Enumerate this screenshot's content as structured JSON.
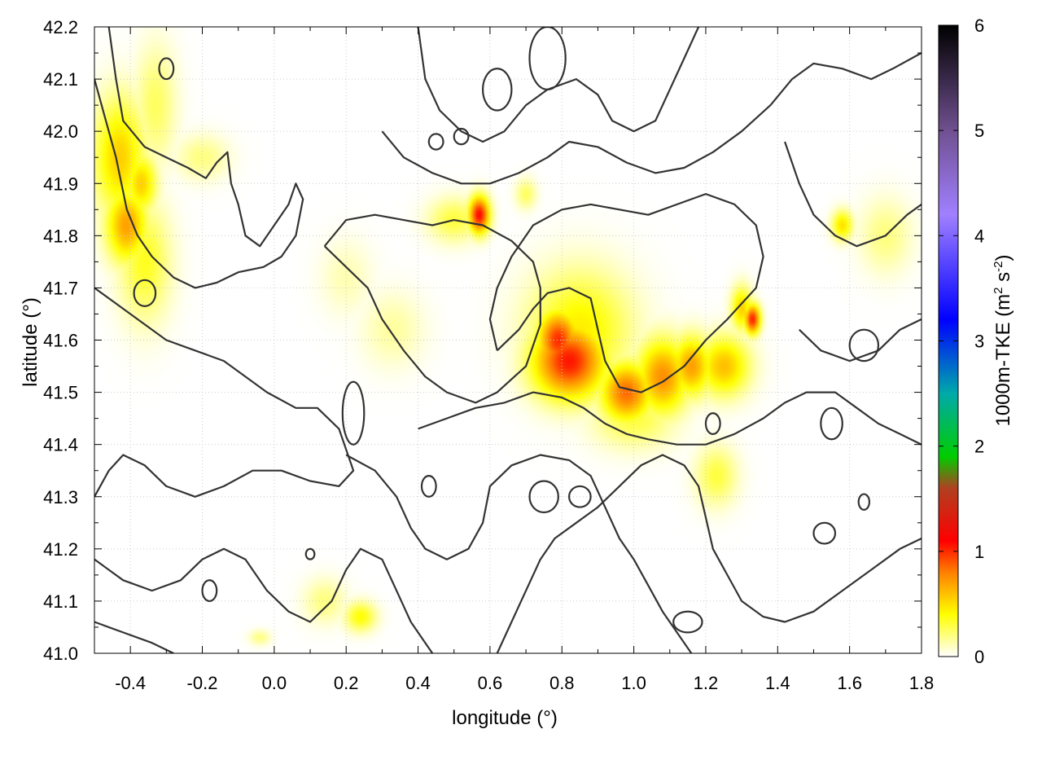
{
  "chart_data": {
    "type": "heatmap",
    "xlabel": "longitude (°)",
    "ylabel": "latitude (°)",
    "xlim": [
      -0.5,
      1.8
    ],
    "ylim": [
      41.0,
      42.2
    ],
    "x_ticks": [
      "-0.4",
      "-0.2",
      "0.0",
      "0.2",
      "0.4",
      "0.6",
      "0.8",
      "1.0",
      "1.2",
      "1.4",
      "1.6",
      "1.8"
    ],
    "y_ticks": [
      "41.0",
      "41.1",
      "41.2",
      "41.3",
      "41.4",
      "41.5",
      "41.6",
      "41.7",
      "41.8",
      "41.9",
      "42.0",
      "42.1",
      "42.2"
    ],
    "grid": true,
    "colorbar": {
      "label_main": "1000m-TKE (m",
      "label_sup1": "2",
      "label_mid": " s",
      "label_sup2": "-2",
      "label_end": ")",
      "range": [
        0,
        6
      ],
      "ticks": [
        "0",
        "1",
        "2",
        "3",
        "4",
        "5",
        "6"
      ],
      "colormap_stops": [
        {
          "value": 0.0,
          "color": "#ffffff"
        },
        {
          "value": 0.4,
          "color": "#ffff00"
        },
        {
          "value": 0.8,
          "color": "#ff8000"
        },
        {
          "value": 1.1,
          "color": "#ff0000"
        },
        {
          "value": 1.6,
          "color": "#b04020"
        },
        {
          "value": 1.9,
          "color": "#00cc00"
        },
        {
          "value": 2.5,
          "color": "#00aaaa"
        },
        {
          "value": 3.2,
          "color": "#0000ff"
        },
        {
          "value": 4.2,
          "color": "#a080ff"
        },
        {
          "value": 5.0,
          "color": "#705090"
        },
        {
          "value": 6.0,
          "color": "#000000"
        }
      ]
    },
    "hotspots": [
      {
        "lon": -0.43,
        "lat": 41.95,
        "sx": 0.05,
        "sy": 0.08,
        "value": 0.55
      },
      {
        "lon": -0.41,
        "lat": 41.82,
        "sx": 0.04,
        "sy": 0.05,
        "value": 0.7
      },
      {
        "lon": -0.37,
        "lat": 41.9,
        "sx": 0.03,
        "sy": 0.04,
        "value": 0.55
      },
      {
        "lon": -0.36,
        "lat": 41.75,
        "sx": 0.05,
        "sy": 0.08,
        "value": 0.35
      },
      {
        "lon": -0.33,
        "lat": 42.05,
        "sx": 0.04,
        "sy": 0.08,
        "value": 0.25
      },
      {
        "lon": -0.2,
        "lat": 41.95,
        "sx": 0.05,
        "sy": 0.03,
        "value": 0.2
      },
      {
        "lon": 0.57,
        "lat": 41.84,
        "sx": 0.02,
        "sy": 0.025,
        "value": 1.1
      },
      {
        "lon": 0.5,
        "lat": 41.83,
        "sx": 0.05,
        "sy": 0.03,
        "value": 0.3
      },
      {
        "lon": 0.82,
        "lat": 41.56,
        "sx": 0.07,
        "sy": 0.05,
        "value": 1.05
      },
      {
        "lon": 0.79,
        "lat": 41.6,
        "sx": 0.04,
        "sy": 0.04,
        "value": 1.0
      },
      {
        "lon": 0.85,
        "lat": 41.62,
        "sx": 0.1,
        "sy": 0.08,
        "value": 0.45
      },
      {
        "lon": 0.98,
        "lat": 41.5,
        "sx": 0.05,
        "sy": 0.04,
        "value": 0.85
      },
      {
        "lon": 1.08,
        "lat": 41.53,
        "sx": 0.05,
        "sy": 0.05,
        "value": 0.75
      },
      {
        "lon": 1.16,
        "lat": 41.55,
        "sx": 0.04,
        "sy": 0.04,
        "value": 0.7
      },
      {
        "lon": 1.25,
        "lat": 41.55,
        "sx": 0.05,
        "sy": 0.04,
        "value": 0.6
      },
      {
        "lon": 1.33,
        "lat": 41.64,
        "sx": 0.015,
        "sy": 0.02,
        "value": 1.05
      },
      {
        "lon": 1.3,
        "lat": 41.66,
        "sx": 0.02,
        "sy": 0.03,
        "value": 0.55
      },
      {
        "lon": 1.0,
        "lat": 41.45,
        "sx": 0.08,
        "sy": 0.04,
        "value": 0.3
      },
      {
        "lon": 1.23,
        "lat": 41.34,
        "sx": 0.04,
        "sy": 0.04,
        "value": 0.3
      },
      {
        "lon": 1.58,
        "lat": 41.82,
        "sx": 0.02,
        "sy": 0.02,
        "value": 0.5
      },
      {
        "lon": 1.7,
        "lat": 41.8,
        "sx": 0.05,
        "sy": 0.05,
        "value": 0.2
      },
      {
        "lon": 0.24,
        "lat": 41.07,
        "sx": 0.03,
        "sy": 0.02,
        "value": 0.4
      },
      {
        "lon": 0.14,
        "lat": 41.1,
        "sx": 0.04,
        "sy": 0.03,
        "value": 0.2
      },
      {
        "lon": -0.04,
        "lat": 41.03,
        "sx": 0.02,
        "sy": 0.01,
        "value": 0.2
      },
      {
        "lon": 0.33,
        "lat": 41.62,
        "sx": 0.06,
        "sy": 0.05,
        "value": 0.15
      },
      {
        "lon": 0.2,
        "lat": 41.72,
        "sx": 0.05,
        "sy": 0.05,
        "value": 0.12
      },
      {
        "lon": 0.7,
        "lat": 41.88,
        "sx": 0.02,
        "sy": 0.02,
        "value": 0.25
      }
    ],
    "contours": [
      [
        [
          -0.46,
          42.2
        ],
        [
          -0.44,
          42.1
        ],
        [
          -0.42,
          42.02
        ],
        [
          -0.36,
          41.97
        ],
        [
          -0.3,
          41.95
        ],
        [
          -0.24,
          41.93
        ],
        [
          -0.19,
          41.91
        ],
        [
          -0.16,
          41.94
        ],
        [
          -0.13,
          41.96
        ],
        [
          -0.12,
          41.9
        ],
        [
          -0.1,
          41.86
        ],
        [
          -0.08,
          41.8
        ],
        [
          -0.04,
          41.78
        ],
        [
          0.0,
          41.82
        ],
        [
          0.04,
          41.86
        ],
        [
          0.06,
          41.9
        ],
        [
          0.08,
          41.87
        ],
        [
          0.06,
          41.8
        ],
        [
          0.02,
          41.76
        ],
        [
          -0.03,
          41.74
        ],
        [
          -0.1,
          41.73
        ],
        [
          -0.16,
          41.71
        ],
        [
          -0.22,
          41.7
        ],
        [
          -0.28,
          41.72
        ],
        [
          -0.34,
          41.76
        ],
        [
          -0.38,
          41.8
        ],
        [
          -0.41,
          41.85
        ],
        [
          -0.44,
          41.95
        ],
        [
          -0.48,
          42.05
        ],
        [
          -0.5,
          42.1
        ]
      ],
      [
        [
          -0.5,
          41.7
        ],
        [
          -0.44,
          41.67
        ],
        [
          -0.38,
          41.64
        ],
        [
          -0.3,
          41.6
        ],
        [
          -0.22,
          41.58
        ],
        [
          -0.14,
          41.56
        ],
        [
          -0.08,
          41.53
        ],
        [
          -0.02,
          41.5
        ],
        [
          0.06,
          41.47
        ],
        [
          0.12,
          41.47
        ],
        [
          0.18,
          41.43
        ],
        [
          0.22,
          41.35
        ],
        [
          0.18,
          41.32
        ],
        [
          0.1,
          41.33
        ],
        [
          0.02,
          41.35
        ],
        [
          -0.06,
          41.35
        ],
        [
          -0.14,
          41.32
        ],
        [
          -0.22,
          41.3
        ],
        [
          -0.3,
          41.32
        ],
        [
          -0.36,
          41.36
        ],
        [
          -0.42,
          41.38
        ],
        [
          -0.46,
          41.35
        ],
        [
          -0.5,
          41.3
        ]
      ],
      [
        [
          0.14,
          41.78
        ],
        [
          0.2,
          41.74
        ],
        [
          0.26,
          41.7
        ],
        [
          0.3,
          41.64
        ],
        [
          0.36,
          41.58
        ],
        [
          0.42,
          41.53
        ],
        [
          0.48,
          41.5
        ],
        [
          0.56,
          41.48
        ],
        [
          0.62,
          41.5
        ],
        [
          0.7,
          41.55
        ],
        [
          0.74,
          41.63
        ],
        [
          0.74,
          41.7
        ],
        [
          0.72,
          41.75
        ],
        [
          0.66,
          41.79
        ],
        [
          0.58,
          41.82
        ],
        [
          0.5,
          41.83
        ],
        [
          0.44,
          41.82
        ],
        [
          0.36,
          41.83
        ],
        [
          0.28,
          41.84
        ],
        [
          0.2,
          41.83
        ],
        [
          0.14,
          41.78
        ]
      ],
      [
        [
          0.62,
          41.58
        ],
        [
          0.68,
          41.62
        ],
        [
          0.72,
          41.66
        ],
        [
          0.76,
          41.69
        ],
        [
          0.82,
          41.7
        ],
        [
          0.88,
          41.68
        ],
        [
          0.9,
          41.62
        ],
        [
          0.92,
          41.56
        ],
        [
          0.96,
          41.51
        ],
        [
          1.02,
          41.5
        ],
        [
          1.08,
          41.52
        ],
        [
          1.14,
          41.55
        ],
        [
          1.2,
          41.6
        ],
        [
          1.26,
          41.64
        ],
        [
          1.3,
          41.67
        ],
        [
          1.34,
          41.7
        ],
        [
          1.36,
          41.76
        ],
        [
          1.34,
          41.82
        ],
        [
          1.28,
          41.86
        ],
        [
          1.2,
          41.88
        ],
        [
          1.12,
          41.86
        ],
        [
          1.04,
          41.84
        ],
        [
          0.96,
          41.85
        ],
        [
          0.88,
          41.86
        ],
        [
          0.8,
          41.85
        ],
        [
          0.72,
          41.82
        ],
        [
          0.66,
          41.76
        ],
        [
          0.62,
          41.7
        ],
        [
          0.6,
          41.64
        ],
        [
          0.62,
          41.58
        ]
      ],
      [
        [
          0.4,
          42.2
        ],
        [
          0.42,
          42.1
        ],
        [
          0.46,
          42.04
        ],
        [
          0.52,
          42.0
        ],
        [
          0.58,
          41.98
        ],
        [
          0.64,
          42.0
        ],
        [
          0.7,
          42.05
        ],
        [
          0.76,
          42.08
        ],
        [
          0.84,
          42.1
        ],
        [
          0.9,
          42.07
        ],
        [
          0.94,
          42.02
        ],
        [
          1.0,
          42.0
        ],
        [
          1.06,
          42.02
        ],
        [
          1.1,
          42.08
        ],
        [
          1.14,
          42.14
        ],
        [
          1.18,
          42.2
        ]
      ],
      [
        [
          0.3,
          42.0
        ],
        [
          0.36,
          41.95
        ],
        [
          0.44,
          41.92
        ],
        [
          0.52,
          41.9
        ],
        [
          0.6,
          41.9
        ],
        [
          0.68,
          41.92
        ],
        [
          0.76,
          41.95
        ],
        [
          0.82,
          41.98
        ],
        [
          0.9,
          41.97
        ],
        [
          0.98,
          41.94
        ],
        [
          1.06,
          41.92
        ],
        [
          1.14,
          41.93
        ],
        [
          1.22,
          41.96
        ],
        [
          1.3,
          42.0
        ],
        [
          1.38,
          42.05
        ],
        [
          1.44,
          42.1
        ],
        [
          1.5,
          42.13
        ],
        [
          1.58,
          42.12
        ],
        [
          1.66,
          42.1
        ],
        [
          1.72,
          42.12
        ],
        [
          1.8,
          42.15
        ]
      ],
      [
        [
          0.4,
          41.43
        ],
        [
          0.48,
          41.45
        ],
        [
          0.56,
          41.47
        ],
        [
          0.64,
          41.48
        ],
        [
          0.72,
          41.5
        ],
        [
          0.8,
          41.49
        ],
        [
          0.86,
          41.47
        ],
        [
          0.92,
          41.44
        ],
        [
          0.98,
          41.42
        ],
        [
          1.04,
          41.41
        ],
        [
          1.12,
          41.4
        ],
        [
          1.2,
          41.4
        ],
        [
          1.28,
          41.42
        ],
        [
          1.36,
          41.45
        ],
        [
          1.42,
          41.48
        ],
        [
          1.48,
          41.5
        ],
        [
          1.56,
          41.5
        ],
        [
          1.62,
          41.47
        ],
        [
          1.68,
          41.44
        ],
        [
          1.74,
          41.42
        ],
        [
          1.8,
          41.4
        ]
      ],
      [
        [
          0.2,
          41.38
        ],
        [
          0.28,
          41.35
        ],
        [
          0.34,
          41.3
        ],
        [
          0.38,
          41.24
        ],
        [
          0.42,
          41.2
        ],
        [
          0.48,
          41.18
        ],
        [
          0.54,
          41.2
        ],
        [
          0.58,
          41.25
        ],
        [
          0.6,
          41.32
        ],
        [
          0.66,
          41.36
        ],
        [
          0.74,
          41.38
        ],
        [
          0.82,
          41.37
        ],
        [
          0.88,
          41.34
        ],
        [
          0.92,
          41.28
        ],
        [
          0.96,
          41.22
        ],
        [
          1.0,
          41.18
        ],
        [
          1.04,
          41.13
        ],
        [
          1.08,
          41.08
        ],
        [
          1.12,
          41.04
        ],
        [
          1.16,
          41.0
        ]
      ],
      [
        [
          0.62,
          41.0
        ],
        [
          0.66,
          41.06
        ],
        [
          0.7,
          41.12
        ],
        [
          0.74,
          41.18
        ],
        [
          0.78,
          41.22
        ],
        [
          0.84,
          41.25
        ],
        [
          0.9,
          41.28
        ],
        [
          0.96,
          41.32
        ],
        [
          1.02,
          41.36
        ],
        [
          1.08,
          41.38
        ],
        [
          1.14,
          41.36
        ],
        [
          1.18,
          41.32
        ],
        [
          1.2,
          41.26
        ],
        [
          1.22,
          41.2
        ],
        [
          1.26,
          41.15
        ],
        [
          1.3,
          41.1
        ],
        [
          1.36,
          41.07
        ],
        [
          1.42,
          41.06
        ],
        [
          1.5,
          41.08
        ],
        [
          1.58,
          41.12
        ],
        [
          1.66,
          41.16
        ],
        [
          1.74,
          41.2
        ],
        [
          1.8,
          41.22
        ]
      ],
      [
        [
          -0.5,
          41.18
        ],
        [
          -0.42,
          41.14
        ],
        [
          -0.34,
          41.12
        ],
        [
          -0.26,
          41.14
        ],
        [
          -0.2,
          41.18
        ],
        [
          -0.14,
          41.2
        ],
        [
          -0.08,
          41.18
        ],
        [
          -0.02,
          41.12
        ],
        [
          0.04,
          41.08
        ],
        [
          0.1,
          41.06
        ],
        [
          0.16,
          41.1
        ],
        [
          0.2,
          41.16
        ],
        [
          0.24,
          41.2
        ],
        [
          0.3,
          41.18
        ],
        [
          0.34,
          41.12
        ],
        [
          0.38,
          41.06
        ],
        [
          0.42,
          41.02
        ],
        [
          0.44,
          41.0
        ]
      ],
      [
        [
          -0.5,
          41.06
        ],
        [
          -0.42,
          41.04
        ],
        [
          -0.34,
          41.02
        ],
        [
          -0.28,
          41.0
        ]
      ],
      [
        [
          1.42,
          41.98
        ],
        [
          1.46,
          41.9
        ],
        [
          1.5,
          41.84
        ],
        [
          1.56,
          41.8
        ],
        [
          1.62,
          41.78
        ],
        [
          1.7,
          41.8
        ],
        [
          1.76,
          41.84
        ],
        [
          1.8,
          41.86
        ]
      ],
      [
        [
          1.46,
          41.62
        ],
        [
          1.52,
          41.58
        ],
        [
          1.6,
          41.56
        ],
        [
          1.68,
          41.58
        ],
        [
          1.74,
          41.62
        ],
        [
          1.8,
          41.64
        ]
      ]
    ],
    "closed_rings": [
      {
        "lon": -0.36,
        "lat": 41.69,
        "rx": 0.03,
        "ry": 0.025
      },
      {
        "lon": 0.45,
        "lat": 41.98,
        "rx": 0.02,
        "ry": 0.015
      },
      {
        "lon": 0.52,
        "lat": 41.99,
        "rx": 0.02,
        "ry": 0.015
      },
      {
        "lon": 0.76,
        "lat": 42.14,
        "rx": 0.05,
        "ry": 0.06
      },
      {
        "lon": 0.62,
        "lat": 42.08,
        "rx": 0.04,
        "ry": 0.04
      },
      {
        "lon": 1.22,
        "lat": 41.44,
        "rx": 0.02,
        "ry": 0.02
      },
      {
        "lon": 1.55,
        "lat": 41.44,
        "rx": 0.03,
        "ry": 0.03
      },
      {
        "lon": 1.64,
        "lat": 41.59,
        "rx": 0.04,
        "ry": 0.03
      },
      {
        "lon": 0.43,
        "lat": 41.32,
        "rx": 0.02,
        "ry": 0.02
      },
      {
        "lon": 0.75,
        "lat": 41.3,
        "rx": 0.04,
        "ry": 0.03
      },
      {
        "lon": 0.85,
        "lat": 41.3,
        "rx": 0.03,
        "ry": 0.02
      },
      {
        "lon": -0.18,
        "lat": 41.12,
        "rx": 0.02,
        "ry": 0.02
      },
      {
        "lon": 0.1,
        "lat": 41.19,
        "rx": 0.012,
        "ry": 0.01
      },
      {
        "lon": 1.53,
        "lat": 41.23,
        "rx": 0.03,
        "ry": 0.02
      },
      {
        "lon": 1.15,
        "lat": 41.06,
        "rx": 0.04,
        "ry": 0.02
      },
      {
        "lon": -0.3,
        "lat": 42.12,
        "rx": 0.02,
        "ry": 0.02
      },
      {
        "lon": 0.22,
        "lat": 41.46,
        "rx": 0.03,
        "ry": 0.06
      },
      {
        "lon": 1.64,
        "lat": 41.29,
        "rx": 0.015,
        "ry": 0.015
      }
    ]
  }
}
